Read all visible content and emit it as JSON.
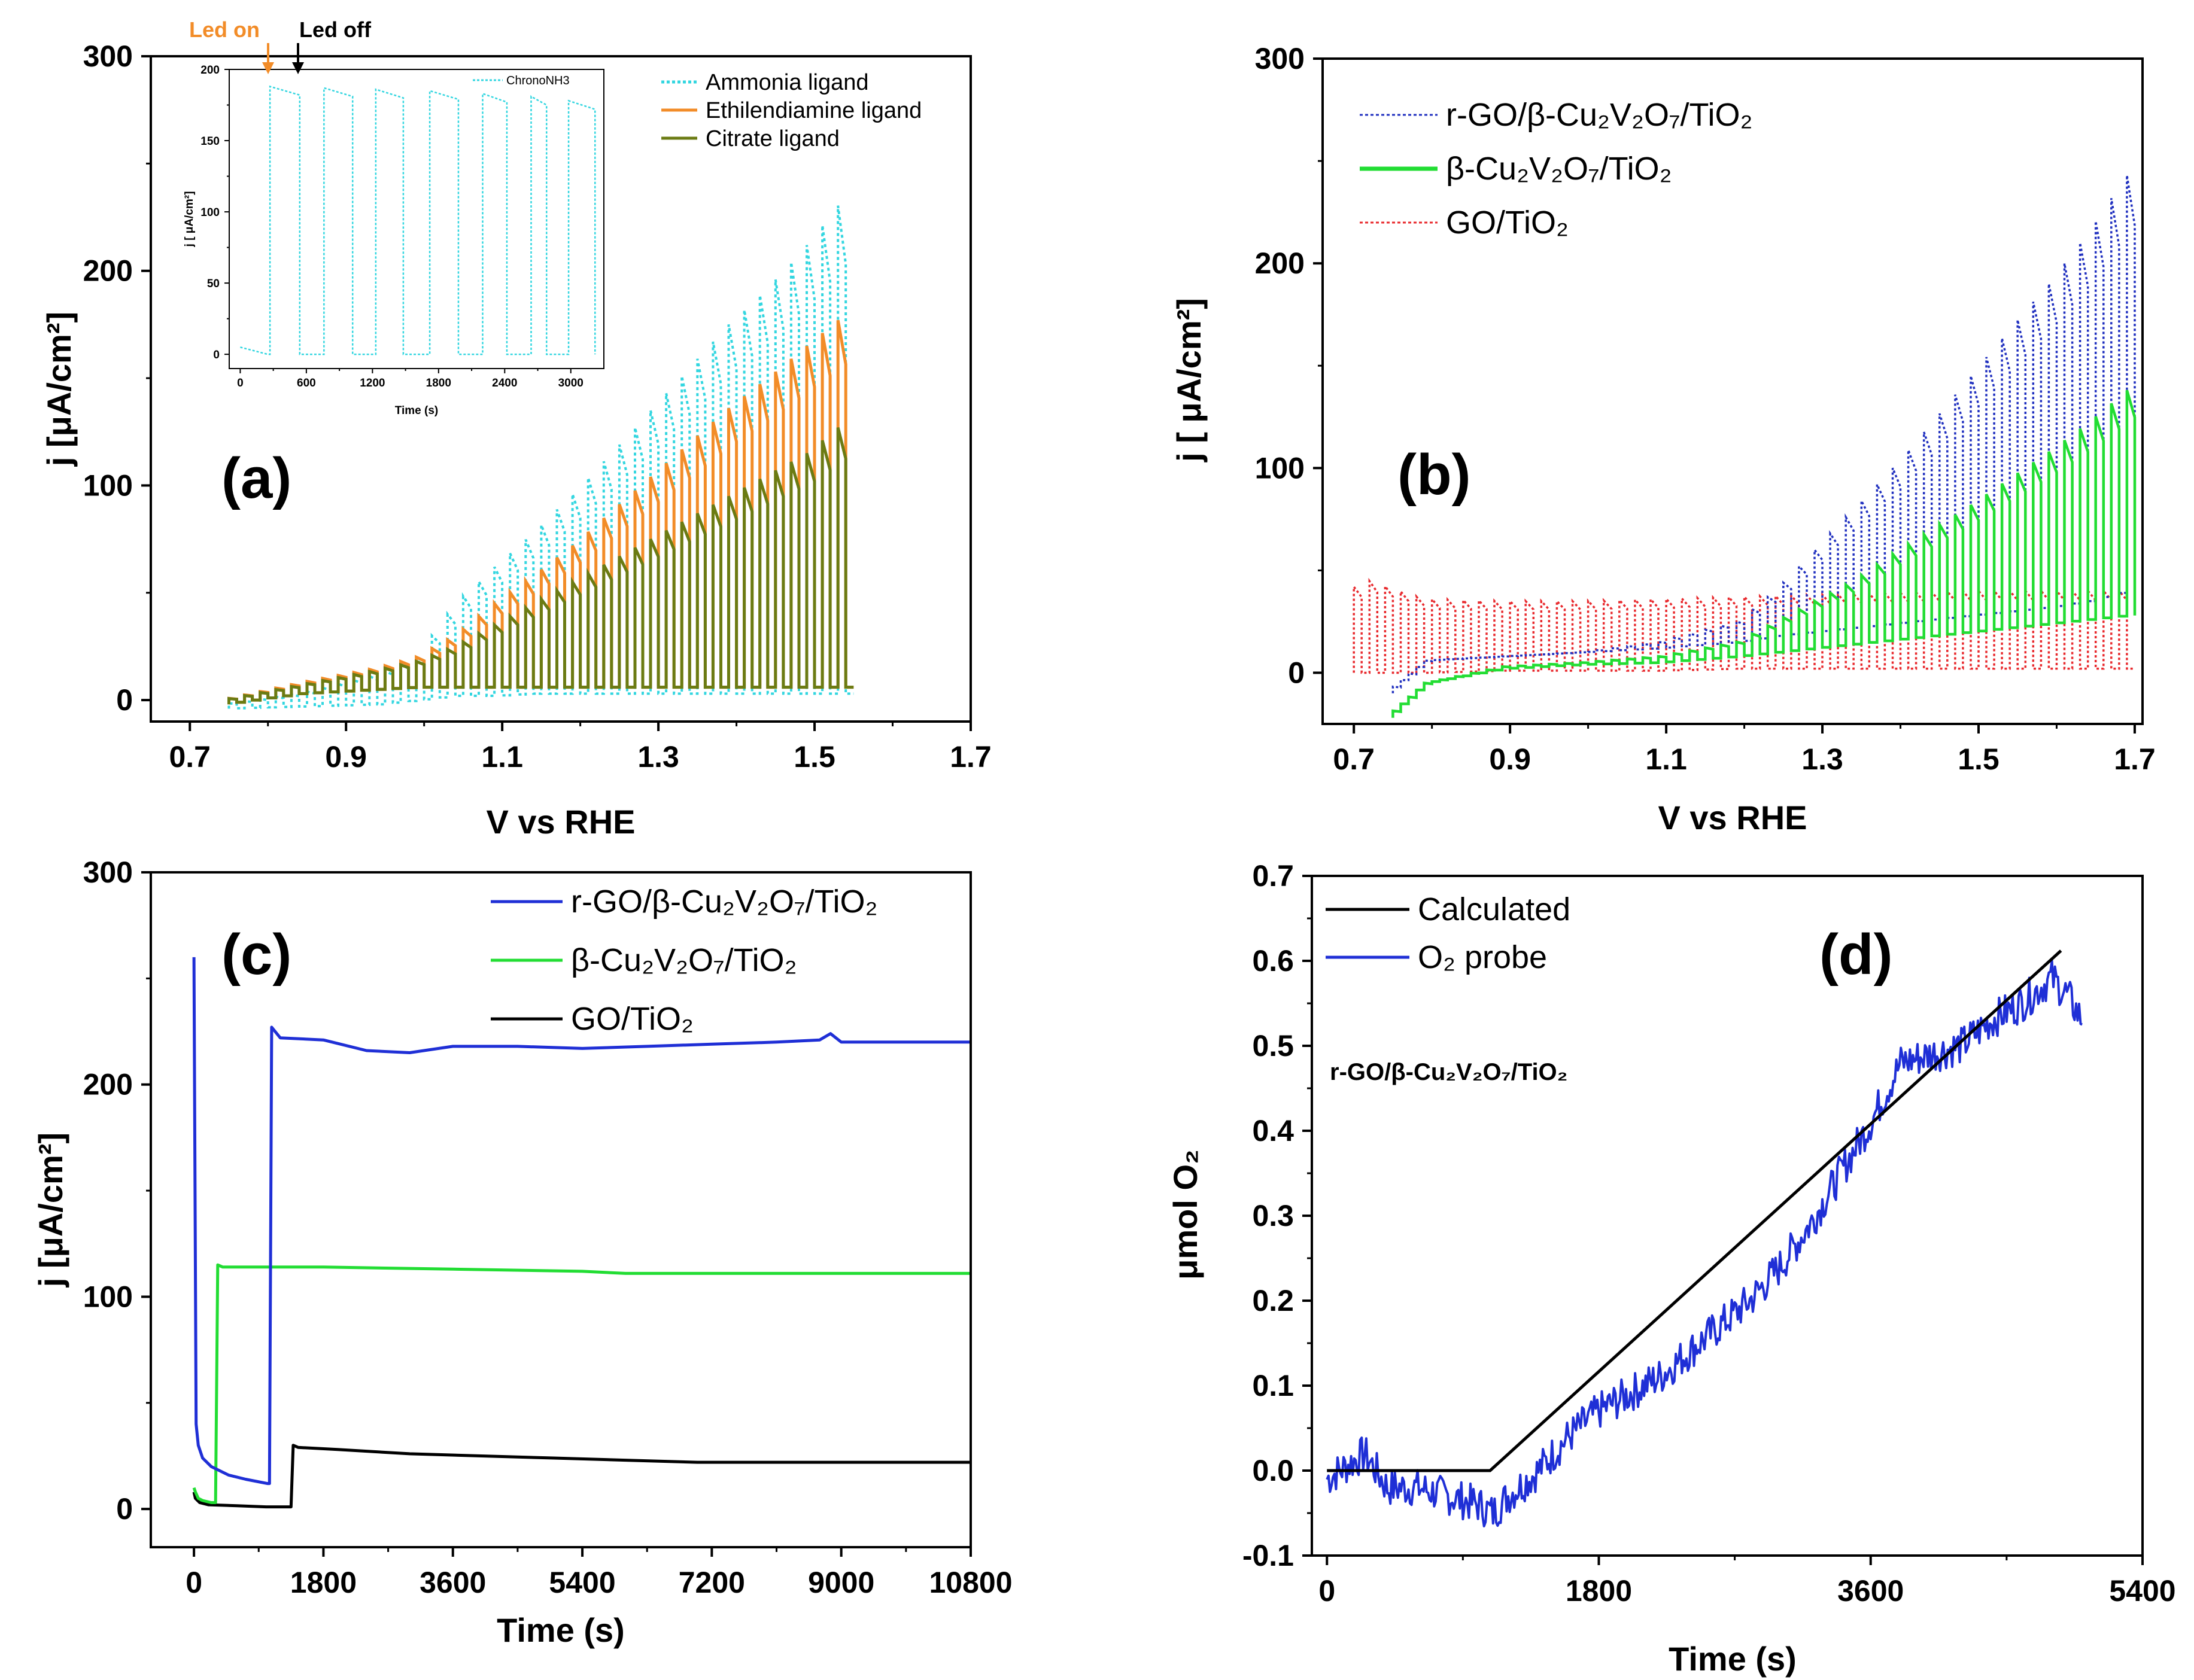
{
  "chart_data": [
    {
      "panel": "(a)",
      "type": "line",
      "xlabel": "V vs RHE",
      "ylabel": "j [μA/cm²]",
      "xlim": [
        0.65,
        1.7
      ],
      "ylim": [
        -10,
        300
      ],
      "xticks": [
        "0.7",
        "0.9",
        "1.1",
        "1.3",
        "1.5",
        "1.7"
      ],
      "yticks": [
        "0",
        "100",
        "200",
        "300"
      ],
      "pulse": {
        "x_start": 0.75,
        "x_end": 1.55,
        "period": 0.02
      },
      "series": [
        {
          "name": "Ammonia ligand",
          "color": "#33d6e0",
          "style": "dotted",
          "x": [
            0.75,
            0.85,
            0.95,
            1.0,
            1.05,
            1.1,
            1.15,
            1.2,
            1.25,
            1.3,
            1.35,
            1.4,
            1.45,
            1.5,
            1.55
          ],
          "light": [
            -2,
            3,
            12,
            20,
            45,
            62,
            78,
            96,
            115,
            135,
            155,
            175,
            192,
            212,
            235
          ],
          "dark": [
            -4,
            -3,
            -2,
            0,
            2,
            2,
            3,
            3,
            3,
            3,
            3,
            3,
            3,
            3,
            3
          ]
        },
        {
          "name": "Ethilendiamine ligand",
          "color": "#f28c28",
          "style": "solid",
          "x": [
            0.75,
            0.85,
            0.95,
            1.0,
            1.05,
            1.1,
            1.15,
            1.2,
            1.25,
            1.3,
            1.35,
            1.4,
            1.45,
            1.5,
            1.55
          ],
          "light": [
            0,
            8,
            15,
            20,
            30,
            45,
            58,
            72,
            88,
            104,
            120,
            136,
            150,
            165,
            180
          ],
          "dark": [
            -2,
            3,
            5,
            6,
            6,
            6,
            6,
            6,
            6,
            6,
            6,
            6,
            6,
            6,
            6
          ]
        },
        {
          "name": "Citrate ligand",
          "color": "#6b7b13",
          "style": "solid",
          "x": [
            0.75,
            0.85,
            0.95,
            1.0,
            1.05,
            1.1,
            1.15,
            1.2,
            1.25,
            1.3,
            1.35,
            1.4,
            1.45,
            1.5,
            1.55
          ],
          "light": [
            0,
            7,
            14,
            18,
            25,
            35,
            45,
            55,
            65,
            75,
            85,
            95,
            105,
            115,
            130
          ],
          "dark": [
            -2,
            3,
            5,
            6,
            6,
            6,
            6,
            6,
            6,
            6,
            6,
            6,
            6,
            6,
            6
          ]
        }
      ],
      "inset": {
        "xlabel": "Time (s)",
        "ylabel": "j [ μA/cm²]",
        "xlim": [
          -100,
          3300
        ],
        "ylim": [
          -10,
          200
        ],
        "xticks": [
          "0",
          "600",
          "1200",
          "1800",
          "2400",
          "3000"
        ],
        "yticks": [
          "0",
          "50",
          "100",
          "150",
          "200"
        ],
        "legend": "ChronoNH3",
        "color": "#33d6e0",
        "on_intervals": [
          [
            270,
            540
          ],
          [
            760,
            1020
          ],
          [
            1230,
            1480
          ],
          [
            1720,
            1980
          ],
          [
            2200,
            2420
          ],
          [
            2640,
            2780
          ],
          [
            2980,
            3220
          ]
        ],
        "on_levels": [
          185,
          184,
          183,
          182,
          180,
          178,
          175
        ],
        "off_level": 0,
        "start_value": 5
      },
      "annotations": [
        "Led on",
        "Led off"
      ]
    },
    {
      "panel": "(b)",
      "type": "line",
      "xlabel": "V vs RHE",
      "ylabel": "j [ μA/cm²]",
      "xlim": [
        0.66,
        1.71
      ],
      "ylim": [
        -25,
        300
      ],
      "xticks": [
        "0.7",
        "0.9",
        "1.1",
        "1.3",
        "1.5",
        "1.7"
      ],
      "yticks": [
        "0",
        "100",
        "200",
        "300"
      ],
      "series": [
        {
          "name": "r-GO/β-Cu₂V₂O₇/TiO₂",
          "color": "#1f2fbf",
          "style": "dotted",
          "x": [
            0.75,
            0.8,
            0.9,
            1.0,
            1.1,
            1.2,
            1.25,
            1.3,
            1.35,
            1.4,
            1.45,
            1.5,
            1.55,
            1.6,
            1.65,
            1.7
          ],
          "light": [
            -10,
            6,
            8,
            10,
            15,
            25,
            40,
            60,
            80,
            100,
            122,
            145,
            168,
            190,
            215,
            243
          ],
          "dark": [
            -10,
            6,
            8,
            10,
            12,
            15,
            18,
            20,
            22,
            24,
            26,
            28,
            30,
            32,
            35,
            40
          ]
        },
        {
          "name": "β-Cu₂V₂O₇/TiO₂",
          "color": "#22dd33",
          "style": "solid",
          "x": [
            0.75,
            0.8,
            0.9,
            1.0,
            1.1,
            1.2,
            1.25,
            1.3,
            1.35,
            1.4,
            1.45,
            1.5,
            1.55,
            1.6,
            1.65,
            1.7
          ],
          "light": [
            -22,
            -5,
            3,
            5,
            8,
            15,
            25,
            35,
            45,
            58,
            70,
            82,
            95,
            108,
            122,
            138
          ],
          "dark": [
            -22,
            -5,
            2,
            4,
            5,
            8,
            10,
            12,
            14,
            16,
            18,
            20,
            22,
            24,
            26,
            28
          ]
        },
        {
          "name": "GO/TiO₂",
          "color": "#e8292d",
          "style": "dotted",
          "x": [
            0.7,
            0.72,
            0.8,
            0.9,
            1.0,
            1.1,
            1.2,
            1.3,
            1.4,
            1.5,
            1.6,
            1.7
          ],
          "light": [
            38,
            46,
            36,
            35,
            35,
            36,
            37,
            38,
            39,
            40,
            40,
            40
          ],
          "dark": [
            0,
            0,
            0,
            1,
            1,
            1,
            2,
            2,
            2,
            2,
            2,
            2
          ]
        }
      ]
    },
    {
      "panel": "(c)",
      "type": "line",
      "xlabel": "Time (s)",
      "ylabel": "j [μA/cm²]",
      "xlim": [
        -600,
        10800
      ],
      "ylim": [
        -18,
        300
      ],
      "xticks": [
        "0",
        "1800",
        "3600",
        "5400",
        "7200",
        "9000",
        "10800"
      ],
      "yticks": [
        "0",
        "100",
        "200",
        "300"
      ],
      "series": [
        {
          "name": "r-GO/β-Cu₂V₂O₇/TiO₂",
          "color": "#1f2fd6",
          "x": [
            0,
            30,
            60,
            120,
            240,
            480,
            720,
            1020,
            1050,
            1080,
            1200,
            1800,
            2400,
            3000,
            3600,
            4500,
            5400,
            6300,
            7200,
            8100,
            8700,
            8850,
            9000,
            9900,
            10800
          ],
          "y": [
            260,
            40,
            30,
            24,
            20,
            16,
            14,
            12,
            12,
            227,
            222,
            221,
            216,
            215,
            218,
            218,
            217,
            218,
            219,
            220,
            221,
            224,
            220,
            220,
            220
          ]
        },
        {
          "name": "β-Cu₂V₂O₇/TiO₂",
          "color": "#22dd33",
          "x": [
            0,
            20,
            60,
            120,
            240,
            300,
            330,
            400,
            1800,
            3600,
            5400,
            6000,
            7200,
            9000,
            10800
          ],
          "y": [
            10,
            8,
            5,
            4,
            3,
            3,
            115,
            114,
            114,
            113,
            112,
            111,
            111,
            111,
            111
          ]
        },
        {
          "name": "GO/TiO₂",
          "color": "#000000",
          "x": [
            0,
            20,
            80,
            200,
            600,
            1000,
            1350,
            1380,
            1450,
            2000,
            3000,
            4000,
            5000,
            6000,
            7000,
            8000,
            9000,
            10800
          ],
          "y": [
            8,
            5,
            3,
            2,
            1.5,
            1,
            1,
            30,
            29,
            28,
            26,
            25,
            24,
            23,
            22,
            22,
            22,
            22
          ]
        }
      ]
    },
    {
      "panel": "(d)",
      "type": "line",
      "title": "r-GO/β-Cu₂V₂O₇/TiO₂",
      "xlabel": "Time (s)",
      "ylabel": "μmol O₂",
      "xlim": [
        -100,
        5400
      ],
      "ylim": [
        -0.1,
        0.7
      ],
      "xticks": [
        "0",
        "1800",
        "3600",
        "5400"
      ],
      "yticks": [
        "-0.1",
        "0.0",
        "0.1",
        "0.2",
        "0.3",
        "0.4",
        "0.5",
        "0.6",
        "0.7"
      ],
      "series": [
        {
          "name": "Calculated",
          "color": "#000000",
          "x": [
            0,
            1080,
            4860
          ],
          "y": [
            0,
            0,
            0.612
          ]
        },
        {
          "name": "O₂ probe",
          "color": "#1f2fd6",
          "noisy": true,
          "x": [
            0,
            250,
            400,
            600,
            800,
            1000,
            1100,
            1200,
            1400,
            1600,
            1800,
            2000,
            2200,
            2400,
            2600,
            2800,
            3000,
            3200,
            3400,
            3600,
            3800,
            4000,
            4200,
            4400,
            4600,
            4800,
            4900,
            5000
          ],
          "y": [
            -0.01,
            0.02,
            -0.02,
            -0.02,
            -0.03,
            -0.04,
            -0.05,
            -0.03,
            0.0,
            0.04,
            0.07,
            0.09,
            0.11,
            0.14,
            0.17,
            0.2,
            0.24,
            0.29,
            0.35,
            0.41,
            0.48,
            0.49,
            0.5,
            0.53,
            0.55,
            0.58,
            0.56,
            0.53
          ]
        }
      ]
    }
  ]
}
